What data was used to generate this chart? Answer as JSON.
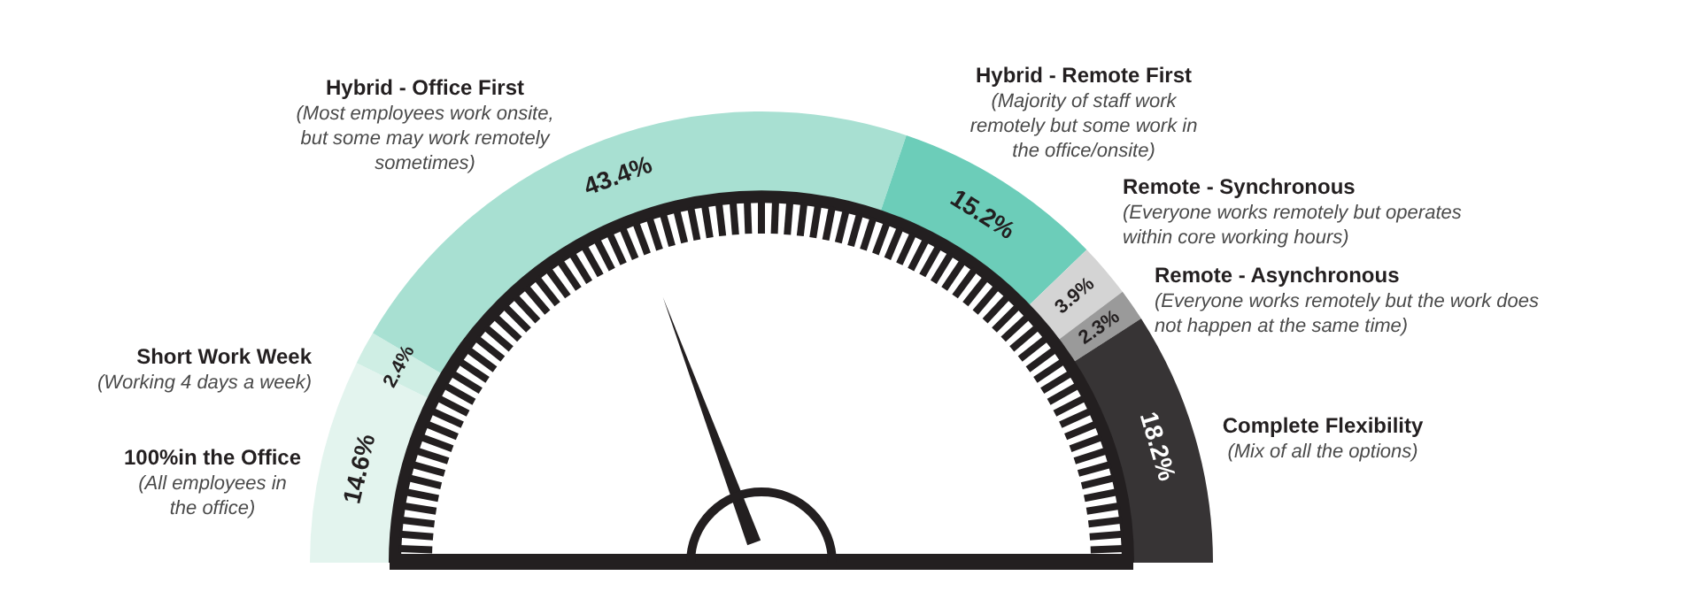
{
  "chart_data": {
    "type": "donut",
    "categories": [
      "100%in the Office",
      "Short Work Week",
      "Hybrid - Office First",
      "Hybrid - Remote First",
      "Remote - Synchronous",
      "Remote - Asynchronous",
      "Complete Flexibility"
    ],
    "values": [
      14.6,
      2.4,
      43.4,
      15.2,
      3.9,
      2.3,
      18.2
    ],
    "colors": [
      "#e3f4ee",
      "#cfeee4",
      "#a8e0d2",
      "#6ccdb9",
      "#d4d4d4",
      "#9a9a9a",
      "#373435"
    ],
    "value_labels": [
      "14.6%",
      "2.4%",
      "43.4%",
      "15.2%",
      "3.9%",
      "2.3%",
      "18.2%"
    ],
    "needle": "Hybrid - Office First",
    "annotations": [
      "(All employees in the office)",
      "(Working 4 days a week)",
      "(Most employees work onsite, but some may work remotely sometimes)",
      "(Majority of staff work remotely but some work in the office/onsite)",
      "(Everyone works remotely but operates within core working hours)",
      "(Everyone works remotely but the work does not happen at the same time)",
      "(Mix of all the options)"
    ],
    "legend": false
  }
}
